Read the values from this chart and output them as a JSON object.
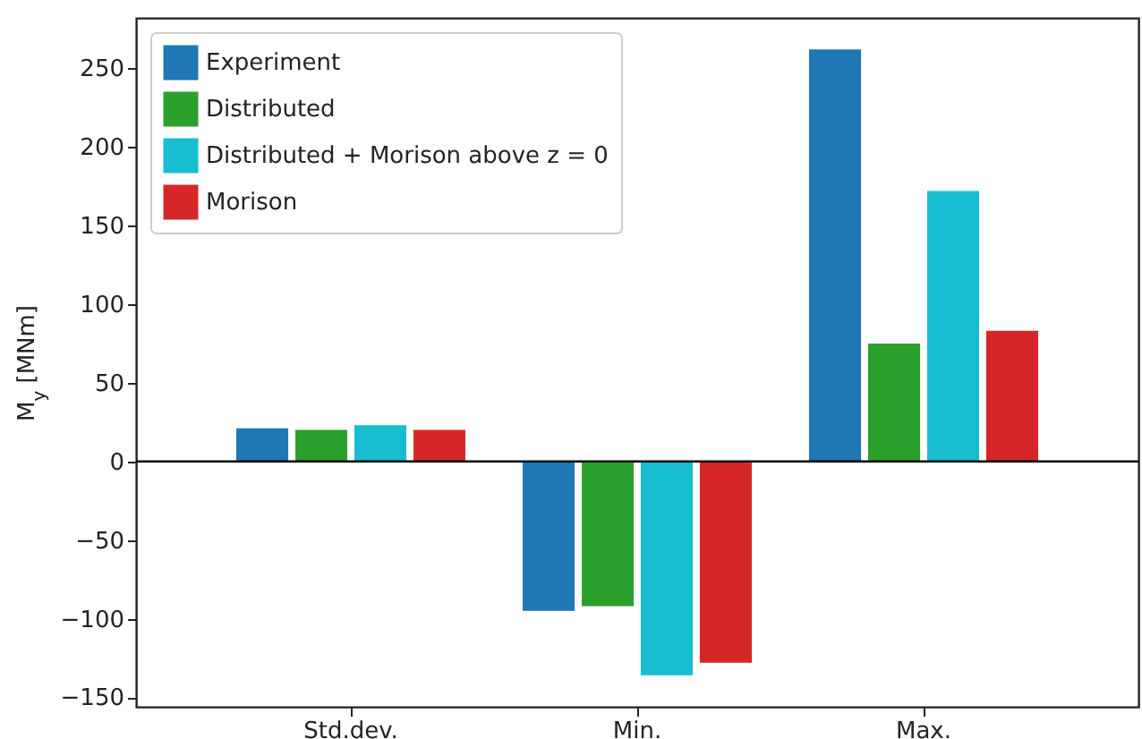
{
  "chart_data": {
    "type": "bar",
    "ylabel": "M$_{y}$ [MNm]",
    "categories": [
      "Std.dev.",
      "Min.",
      "Max."
    ],
    "series": [
      {
        "name": "Experiment",
        "color": "#1f77b4",
        "values": [
          21,
          -95,
          262
        ]
      },
      {
        "name": "Distributed",
        "color": "#2ca02c",
        "values": [
          20,
          -92,
          75
        ]
      },
      {
        "name": "Distributed + Morison above z = 0",
        "color": "#17becf",
        "values": [
          23,
          -136,
          172
        ]
      },
      {
        "name": "Morison",
        "color": "#d62728",
        "values": [
          20,
          -128,
          83
        ]
      }
    ],
    "ylim": [
      -156,
      282
    ],
    "yticks": [
      -150,
      -100,
      -50,
      0,
      50,
      100,
      150,
      200,
      250
    ],
    "ref_lines": [
      {
        "axis": "y",
        "value": 0,
        "color": "#000000"
      }
    ],
    "grid": false,
    "legend": "top left"
  }
}
